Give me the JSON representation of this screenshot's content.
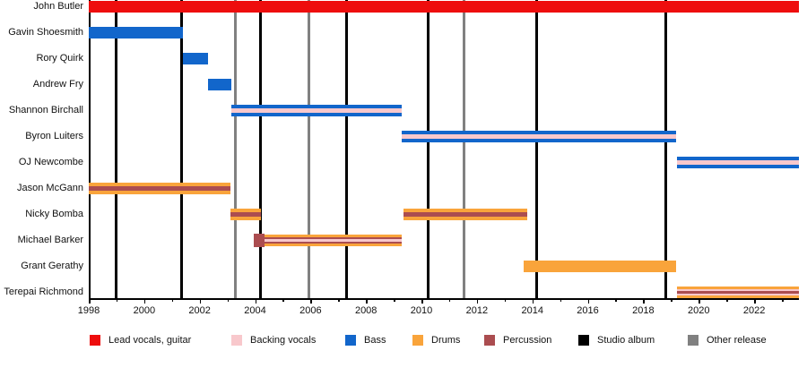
{
  "colors": {
    "lead": "#ee0d0d",
    "backing": "#f8c8cc",
    "bass": "#1266cb",
    "drums": "#f9a43b",
    "percussion": "#ab4d50",
    "studio_album": "#000000",
    "other_release": "#808080"
  },
  "legend": {
    "items": [
      {
        "label": "Lead vocals, guitar",
        "role": "lead"
      },
      {
        "label": "Backing vocals",
        "role": "backing"
      },
      {
        "label": "Bass",
        "role": "bass"
      },
      {
        "label": "Drums",
        "role": "drums"
      },
      {
        "label": "Percussion",
        "role": "percussion"
      },
      {
        "label": "Studio album",
        "role": "studio_album"
      },
      {
        "label": "Other release",
        "role": "other_release"
      }
    ]
  },
  "chart_data": {
    "type": "gantt",
    "title": "",
    "x_axis": {
      "start": 1998,
      "end": 2023.6,
      "major_tick_step": 2,
      "minor_tick_step": 1,
      "major_tick_labels": [
        "1998",
        "2000",
        "2002",
        "2004",
        "2006",
        "2008",
        "2010",
        "2012",
        "2014",
        "2016",
        "2018",
        "2020",
        "2022"
      ]
    },
    "rows": [
      {
        "name": "John Butler",
        "bars": [
          {
            "start": 1998.0,
            "end": 2023.6,
            "roles": [
              "lead"
            ]
          }
        ]
      },
      {
        "name": "Gavin Shoesmith",
        "bars": [
          {
            "start": 1998.0,
            "end": 2001.4,
            "roles": [
              "bass"
            ]
          }
        ]
      },
      {
        "name": "Rory Quirk",
        "bars": [
          {
            "start": 2001.4,
            "end": 2002.3,
            "roles": [
              "bass"
            ]
          }
        ]
      },
      {
        "name": "Andrew Fry",
        "bars": [
          {
            "start": 2002.3,
            "end": 2003.15,
            "roles": [
              "bass"
            ]
          }
        ]
      },
      {
        "name": "Shannon Birchall",
        "bars": [
          {
            "start": 2003.15,
            "end": 2009.3,
            "roles": [
              "bass",
              "backing"
            ]
          }
        ]
      },
      {
        "name": "Byron Luiters",
        "bars": [
          {
            "start": 2009.3,
            "end": 2019.2,
            "roles": [
              "bass",
              "backing"
            ]
          }
        ]
      },
      {
        "name": "OJ Newcombe",
        "bars": [
          {
            "start": 2019.2,
            "end": 2023.6,
            "roles": [
              "bass",
              "backing"
            ]
          }
        ]
      },
      {
        "name": "Jason McGann",
        "bars": [
          {
            "start": 1998.0,
            "end": 2003.1,
            "roles": [
              "drums",
              "percussion"
            ]
          }
        ]
      },
      {
        "name": "Nicky Bomba",
        "bars": [
          {
            "start": 2003.1,
            "end": 2004.2,
            "roles": [
              "drums",
              "percussion"
            ]
          },
          {
            "start": 2009.35,
            "end": 2013.8,
            "roles": [
              "drums",
              "percussion"
            ]
          }
        ]
      },
      {
        "name": "Michael Barker",
        "bars": [
          {
            "start": 2003.95,
            "end": 2004.35,
            "roles": [
              "percussion"
            ]
          },
          {
            "start": 2004.35,
            "end": 2009.3,
            "roles": [
              "drums",
              "percussion",
              "backing"
            ]
          }
        ]
      },
      {
        "name": "Grant Gerathy",
        "bars": [
          {
            "start": 2013.7,
            "end": 2019.2,
            "roles": [
              "drums"
            ]
          }
        ]
      },
      {
        "name": "Terepai Richmond",
        "bars": [
          {
            "start": 2019.2,
            "end": 2023.6,
            "roles": [
              "drums",
              "backing",
              "percussion"
            ]
          }
        ]
      }
    ],
    "events": {
      "studio_albums": [
        1999.0,
        2001.35,
        2004.2,
        2007.3,
        2010.25,
        2014.15,
        2018.8
      ],
      "other_releases": [
        2003.3,
        2005.95,
        2011.55
      ]
    }
  }
}
